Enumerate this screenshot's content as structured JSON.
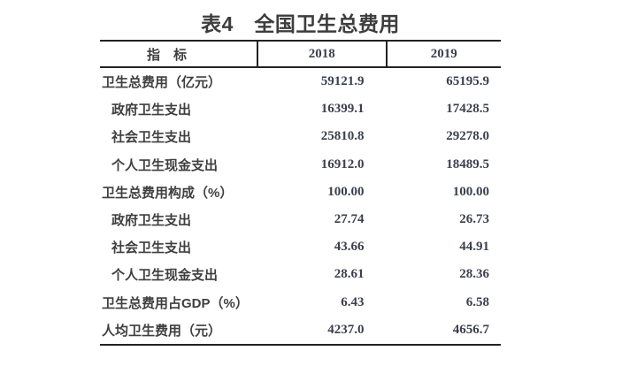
{
  "title": "表4　全国卫生总费用",
  "table": {
    "columns": [
      "指　标",
      "2018",
      "2019"
    ],
    "rows": [
      {
        "label": "卫生总费用（亿元）",
        "indent": 0,
        "v2018": "59121.9",
        "v2019": "65195.9"
      },
      {
        "label": "政府卫生支出",
        "indent": 1,
        "v2018": "16399.1",
        "v2019": "17428.5"
      },
      {
        "label": "社会卫生支出",
        "indent": 1,
        "v2018": "25810.8",
        "v2019": "29278.0"
      },
      {
        "label": "个人卫生现金支出",
        "indent": 1,
        "v2018": "16912.0",
        "v2019": "18489.5"
      },
      {
        "label": "卫生总费用构成（%）",
        "indent": 0,
        "v2018": "100.00",
        "v2019": "100.00"
      },
      {
        "label": "政府卫生支出",
        "indent": 1,
        "v2018": "27.74",
        "v2019": "26.73"
      },
      {
        "label": "社会卫生支出",
        "indent": 1,
        "v2018": "43.66",
        "v2019": "44.91"
      },
      {
        "label": "个人卫生现金支出",
        "indent": 1,
        "v2018": "28.61",
        "v2019": "28.36"
      },
      {
        "label": "卫生总费用占GDP（%）",
        "indent": 0,
        "v2018": "6.43",
        "v2019": "6.58"
      },
      {
        "label": "人均卫生费用（元）",
        "indent": 0,
        "v2018": "4237.0",
        "v2019": "4656.7"
      }
    ]
  },
  "colors": {
    "background": "#ffffff",
    "border": "#222222",
    "label_text": "#3f3f3f",
    "number_text": "#3b3f4e",
    "title_text": "#3d3d3d"
  }
}
